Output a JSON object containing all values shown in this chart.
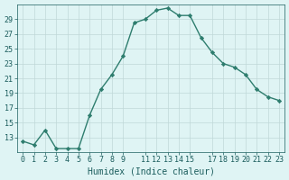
{
  "x": [
    0,
    1,
    2,
    3,
    4,
    5,
    6,
    7,
    8,
    9,
    10,
    11,
    12,
    13,
    14,
    15,
    16,
    17,
    18,
    19,
    20,
    21,
    22,
    23
  ],
  "y": [
    12.5,
    12.0,
    14.0,
    11.5,
    11.5,
    11.5,
    16.0,
    19.5,
    21.5,
    24.0,
    28.5,
    29.0,
    30.2,
    30.5,
    29.5,
    29.5,
    26.5,
    24.5,
    23.0,
    22.5,
    21.5,
    19.5,
    18.5,
    18.0
  ],
  "line_color": "#2e7d6e",
  "marker": "D",
  "markersize": 2.2,
  "linewidth": 1.0,
  "xlabel": "Humidex (Indice chaleur)",
  "xlim": [
    -0.5,
    23.5
  ],
  "ylim": [
    11,
    31
  ],
  "yticks": [
    13,
    15,
    17,
    19,
    21,
    23,
    25,
    27,
    29
  ],
  "bg_color": "#dff4f4",
  "grid_color": "#c0d8d8",
  "font_color": "#1a5c5c",
  "tick_fontsize": 6,
  "label_fontsize": 7
}
